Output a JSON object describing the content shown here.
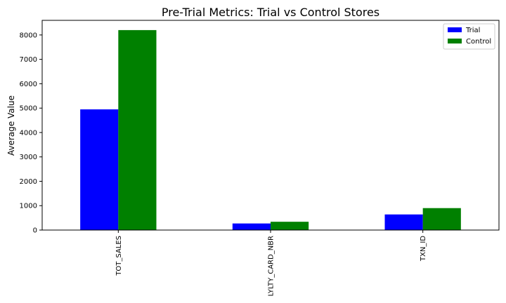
{
  "chart_data": {
    "type": "bar",
    "title": "Pre-Trial Metrics: Trial vs Control Stores",
    "xlabel": "",
    "ylabel": "Average Value",
    "categories": [
      "TOT_SALES",
      "LYLTY_CARD_NBR",
      "TXN_ID"
    ],
    "series": [
      {
        "name": "Trial",
        "color": "#0000ff",
        "values": [
          4950,
          270,
          640
        ]
      },
      {
        "name": "Control",
        "color": "#008000",
        "values": [
          8200,
          340,
          900
        ]
      }
    ],
    "ylim": [
      0,
      8600
    ],
    "yticks": [
      0,
      1000,
      2000,
      3000,
      4000,
      5000,
      6000,
      7000,
      8000
    ],
    "grid": false,
    "legend_position": "top-right"
  }
}
